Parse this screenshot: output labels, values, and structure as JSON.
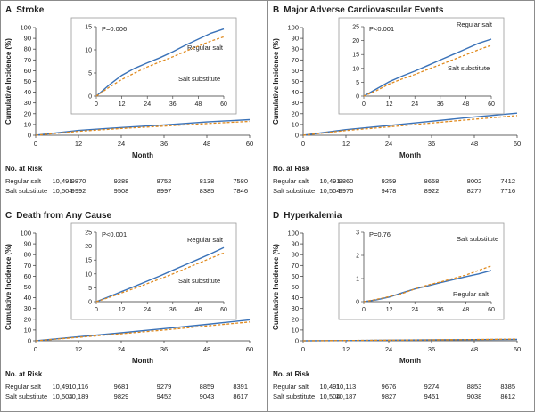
{
  "colors": {
    "regular": "#3a72b8",
    "substitute": "#e08a1e",
    "axis": "#333333",
    "frame": "#8c8c8c",
    "inset_border": "#999999"
  },
  "axis_labels": {
    "y": "Cumulative Incidence (%)",
    "x": "Month",
    "at_risk": "No. at Risk"
  },
  "chart_data": [
    {
      "id": "A",
      "type": "line",
      "title": "Stroke",
      "letter": "A",
      "xlabel": "Month",
      "ylabel": "Cumulative Incidence (%)",
      "x": [
        0,
        12,
        24,
        36,
        48,
        60
      ],
      "xlim": [
        0,
        60
      ],
      "ylim": [
        0,
        100
      ],
      "yticks": [
        0,
        10,
        20,
        30,
        40,
        50,
        60,
        70,
        80,
        90,
        100
      ],
      "inset": {
        "ylim": [
          0,
          15
        ],
        "yticks": [
          0,
          5,
          10,
          15
        ],
        "p_value": "P=0.006",
        "series": [
          {
            "name": "Regular salt",
            "label": "Regular salt",
            "x": [
              0,
              6,
              12,
              18,
              24,
              30,
              36,
              42,
              48,
              54,
              60
            ],
            "values": [
              0,
              2.4,
              4.5,
              6.0,
              7.2,
              8.3,
              9.6,
              11.0,
              12.3,
              13.6,
              14.5
            ]
          },
          {
            "name": "Salt substitute",
            "label": "Salt substitute",
            "x": [
              0,
              6,
              12,
              18,
              24,
              30,
              36,
              42,
              48,
              54,
              60
            ],
            "values": [
              0,
              1.9,
              3.6,
              5.0,
              6.3,
              7.4,
              8.5,
              9.7,
              10.8,
              11.9,
              12.8
            ]
          }
        ]
      },
      "series": [
        {
          "name": "Regular salt",
          "x": [
            0,
            12,
            24,
            36,
            48,
            60
          ],
          "values": [
            0,
            4.5,
            7.2,
            9.6,
            12.3,
            14.5
          ]
        },
        {
          "name": "Salt substitute",
          "x": [
            0,
            12,
            24,
            36,
            48,
            60
          ],
          "values": [
            0,
            3.6,
            6.3,
            8.5,
            10.8,
            12.8
          ]
        }
      ],
      "at_risk": [
        {
          "label": "Regular salt",
          "values": [
            "10,491",
            "9870",
            "9288",
            "8752",
            "8138",
            "7580"
          ]
        },
        {
          "label": "Salt substitute",
          "values": [
            "10,504",
            "9992",
            "9508",
            "8997",
            "8385",
            "7846"
          ]
        }
      ]
    },
    {
      "id": "B",
      "type": "line",
      "title": "Major Adverse Cardiovascular Events",
      "letter": "B",
      "xlabel": "Month",
      "ylabel": "Cumulative Incidence (%)",
      "x": [
        0,
        12,
        24,
        36,
        48,
        60
      ],
      "xlim": [
        0,
        60
      ],
      "ylim": [
        0,
        100
      ],
      "yticks": [
        0,
        10,
        20,
        30,
        40,
        50,
        60,
        70,
        80,
        90,
        100
      ],
      "inset": {
        "ylim": [
          0,
          25
        ],
        "yticks": [
          0,
          5,
          10,
          15,
          20,
          25
        ],
        "p_value": "P<0.001",
        "series": [
          {
            "name": "Regular salt",
            "label": "Regular salt",
            "x": [
              0,
              6,
              12,
              18,
              24,
              30,
              36,
              42,
              48,
              54,
              60
            ],
            "values": [
              0,
              2.6,
              5.2,
              7.2,
              9.0,
              11.0,
              13.0,
              15.0,
              17.0,
              19.0,
              20.5
            ]
          },
          {
            "name": "Salt substitute",
            "label": "Salt substitute",
            "x": [
              0,
              6,
              12,
              18,
              24,
              30,
              36,
              42,
              48,
              54,
              60
            ],
            "values": [
              0,
              2.0,
              4.4,
              6.2,
              7.8,
              9.6,
              11.3,
              13.1,
              14.9,
              16.7,
              18.3
            ]
          }
        ]
      },
      "series": [
        {
          "name": "Regular salt",
          "x": [
            0,
            12,
            24,
            36,
            48,
            60
          ],
          "values": [
            0,
            5.2,
            9.0,
            13.0,
            17.0,
            20.5
          ]
        },
        {
          "name": "Salt substitute",
          "x": [
            0,
            12,
            24,
            36,
            48,
            60
          ],
          "values": [
            0,
            4.4,
            7.8,
            11.3,
            14.9,
            18.3
          ]
        }
      ],
      "at_risk": [
        {
          "label": "Regular salt",
          "values": [
            "10,491",
            "9860",
            "9259",
            "8658",
            "8002",
            "7412"
          ]
        },
        {
          "label": "Salt substitute",
          "values": [
            "10,504",
            "9976",
            "9478",
            "8922",
            "8277",
            "7716"
          ]
        }
      ]
    },
    {
      "id": "C",
      "type": "line",
      "title": "Death from Any Cause",
      "letter": "C",
      "xlabel": "Month",
      "ylabel": "Cumulative Incidence (%)",
      "x": [
        0,
        12,
        24,
        36,
        48,
        60
      ],
      "xlim": [
        0,
        60
      ],
      "ylim": [
        0,
        100
      ],
      "yticks": [
        0,
        10,
        20,
        30,
        40,
        50,
        60,
        70,
        80,
        90,
        100
      ],
      "inset": {
        "ylim": [
          0,
          25
        ],
        "yticks": [
          0,
          5,
          10,
          15,
          20,
          25
        ],
        "p_value": "P<0.001",
        "series": [
          {
            "name": "Regular salt",
            "label": "Regular salt",
            "x": [
              0,
              6,
              12,
              18,
              24,
              30,
              36,
              42,
              48,
              54,
              60
            ],
            "values": [
              0,
              1.8,
              3.7,
              5.5,
              7.4,
              9.3,
              11.3,
              13.3,
              15.3,
              17.3,
              19.5
            ]
          },
          {
            "name": "Salt substitute",
            "label": "Salt substitute",
            "x": [
              0,
              6,
              12,
              18,
              24,
              30,
              36,
              42,
              48,
              54,
              60
            ],
            "values": [
              0,
              1.5,
              3.2,
              4.8,
              6.5,
              8.2,
              10.0,
              11.9,
              13.8,
              15.7,
              17.5
            ]
          }
        ]
      },
      "series": [
        {
          "name": "Regular salt",
          "x": [
            0,
            12,
            24,
            36,
            48,
            60
          ],
          "values": [
            0,
            3.7,
            7.4,
            11.3,
            15.3,
            19.5
          ]
        },
        {
          "name": "Salt substitute",
          "x": [
            0,
            12,
            24,
            36,
            48,
            60
          ],
          "values": [
            0,
            3.2,
            6.5,
            10.0,
            13.8,
            17.5
          ]
        }
      ],
      "at_risk": [
        {
          "label": "Regular salt",
          "values": [
            "10,491",
            "10,116",
            "9681",
            "9279",
            "8859",
            "8391"
          ]
        },
        {
          "label": "Salt substitute",
          "values": [
            "10,504",
            "10,189",
            "9829",
            "9452",
            "9043",
            "8617"
          ]
        }
      ]
    },
    {
      "id": "D",
      "type": "line",
      "title": "Hyperkalemia",
      "letter": "D",
      "xlabel": "Month",
      "ylabel": "Cumulative Incidence (%)",
      "x": [
        0,
        12,
        24,
        36,
        48,
        60
      ],
      "xlim": [
        0,
        60
      ],
      "ylim": [
        0,
        100
      ],
      "yticks": [
        0,
        10,
        20,
        30,
        40,
        50,
        60,
        70,
        80,
        90,
        100
      ],
      "inset": {
        "ylim": [
          0,
          3
        ],
        "yticks": [
          0,
          1,
          2,
          3
        ],
        "p_value": "P=0.76",
        "series": [
          {
            "name": "Regular salt",
            "label": "Regular salt",
            "x": [
              0,
              6,
              12,
              18,
              24,
              30,
              36,
              42,
              48,
              54,
              60
            ],
            "values": [
              0,
              0.08,
              0.2,
              0.38,
              0.55,
              0.68,
              0.82,
              0.95,
              1.08,
              1.2,
              1.35
            ]
          },
          {
            "name": "Salt substitute",
            "label": "Salt substitute",
            "x": [
              0,
              6,
              12,
              18,
              24,
              30,
              36,
              42,
              48,
              54,
              60
            ],
            "values": [
              0,
              0.1,
              0.22,
              0.35,
              0.55,
              0.72,
              0.85,
              1.0,
              1.15,
              1.35,
              1.55
            ]
          }
        ]
      },
      "series": [
        {
          "name": "Regular salt",
          "x": [
            0,
            12,
            24,
            36,
            48,
            60
          ],
          "values": [
            0,
            0.2,
            0.55,
            0.82,
            1.08,
            1.35
          ]
        },
        {
          "name": "Salt substitute",
          "x": [
            0,
            12,
            24,
            36,
            48,
            60
          ],
          "values": [
            0,
            0.22,
            0.55,
            0.85,
            1.15,
            1.55
          ]
        }
      ],
      "at_risk": [
        {
          "label": "Regular salt",
          "values": [
            "10,491",
            "10,113",
            "9676",
            "9274",
            "8853",
            "8385"
          ]
        },
        {
          "label": "Salt substitute",
          "values": [
            "10,504",
            "10,187",
            "9827",
            "9451",
            "9038",
            "8612"
          ]
        }
      ]
    }
  ]
}
